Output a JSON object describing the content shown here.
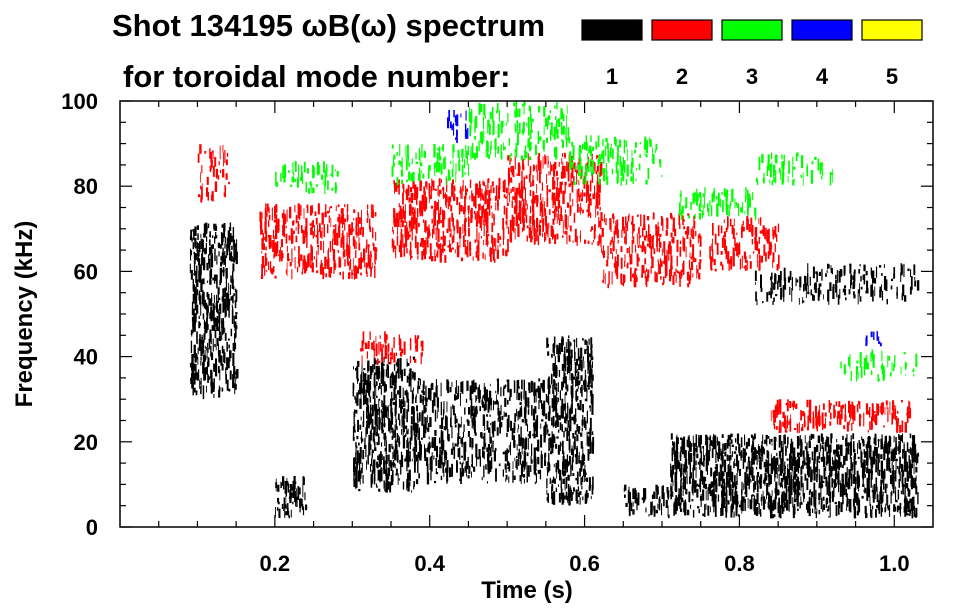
{
  "chart_data": {
    "type": "heatmap",
    "title_line1": "Shot 134195 ωB(ω) spectrum",
    "title_line2": "for toroidal mode number:",
    "xlabel": "Time (s)",
    "ylabel": "Frequency (kHz)",
    "xlim": [
      0.0,
      1.05
    ],
    "ylim": [
      0,
      100
    ],
    "x_ticks": [
      {
        "value": 0.2,
        "label": "0.2"
      },
      {
        "value": 0.4,
        "label": "0.4"
      },
      {
        "value": 0.6,
        "label": "0.6"
      },
      {
        "value": 0.8,
        "label": "0.8"
      },
      {
        "value": 1.0,
        "label": "1.0"
      }
    ],
    "y_ticks": [
      {
        "value": 0,
        "label": "0"
      },
      {
        "value": 20,
        "label": "20"
      },
      {
        "value": 40,
        "label": "40"
      },
      {
        "value": 60,
        "label": "60"
      },
      {
        "value": 80,
        "label": "80"
      },
      {
        "value": 100,
        "label": "100"
      }
    ],
    "legend": [
      {
        "mode": "1",
        "color": "#000000"
      },
      {
        "mode": "2",
        "color": "#ff0000"
      },
      {
        "mode": "3",
        "color": "#00ff00"
      },
      {
        "mode": "4",
        "color": "#0000ff"
      },
      {
        "mode": "5",
        "color": "#ffff00"
      }
    ],
    "regions": [
      {
        "mode": "1",
        "t": [
          0.09,
          0.15
        ],
        "f": [
          30,
          72
        ],
        "density": 0.75
      },
      {
        "mode": "1",
        "t": [
          0.2,
          0.24
        ],
        "f": [
          2,
          12
        ],
        "density": 0.7
      },
      {
        "mode": "1",
        "t": [
          0.3,
          0.38
        ],
        "f": [
          8,
          40
        ],
        "density": 0.8
      },
      {
        "mode": "1",
        "t": [
          0.38,
          0.55
        ],
        "f": [
          10,
          35
        ],
        "density": 0.55
      },
      {
        "mode": "1",
        "t": [
          0.55,
          0.61
        ],
        "f": [
          5,
          45
        ],
        "density": 0.75
      },
      {
        "mode": "1",
        "t": [
          0.65,
          0.71
        ],
        "f": [
          2,
          10
        ],
        "density": 0.5
      },
      {
        "mode": "1",
        "t": [
          0.71,
          1.03
        ],
        "f": [
          2,
          22
        ],
        "density": 0.85
      },
      {
        "mode": "1",
        "t": [
          0.82,
          1.03
        ],
        "f": [
          52,
          62
        ],
        "density": 0.35
      },
      {
        "mode": "2",
        "t": [
          0.1,
          0.14
        ],
        "f": [
          76,
          90
        ],
        "density": 0.35
      },
      {
        "mode": "2",
        "t": [
          0.18,
          0.33
        ],
        "f": [
          58,
          76
        ],
        "density": 0.55
      },
      {
        "mode": "2",
        "t": [
          0.35,
          0.5
        ],
        "f": [
          62,
          82
        ],
        "density": 0.6
      },
      {
        "mode": "2",
        "t": [
          0.5,
          0.62
        ],
        "f": [
          66,
          88
        ],
        "density": 0.6
      },
      {
        "mode": "2",
        "t": [
          0.62,
          0.75
        ],
        "f": [
          56,
          74
        ],
        "density": 0.5
      },
      {
        "mode": "2",
        "t": [
          0.76,
          0.85
        ],
        "f": [
          60,
          73
        ],
        "density": 0.4
      },
      {
        "mode": "2",
        "t": [
          0.84,
          1.02
        ],
        "f": [
          22,
          30
        ],
        "density": 0.5
      },
      {
        "mode": "2",
        "t": [
          0.31,
          0.39
        ],
        "f": [
          38,
          46
        ],
        "density": 0.4
      },
      {
        "mode": "3",
        "t": [
          0.2,
          0.28
        ],
        "f": [
          78,
          86
        ],
        "density": 0.35
      },
      {
        "mode": "3",
        "t": [
          0.35,
          0.45
        ],
        "f": [
          80,
          90
        ],
        "density": 0.35
      },
      {
        "mode": "3",
        "t": [
          0.45,
          0.58
        ],
        "f": [
          86,
          100
        ],
        "density": 0.35
      },
      {
        "mode": "3",
        "t": [
          0.58,
          0.7
        ],
        "f": [
          80,
          92
        ],
        "density": 0.35
      },
      {
        "mode": "3",
        "t": [
          0.72,
          0.82
        ],
        "f": [
          72,
          80
        ],
        "density": 0.4
      },
      {
        "mode": "3",
        "t": [
          0.82,
          0.92
        ],
        "f": [
          80,
          88
        ],
        "density": 0.3
      },
      {
        "mode": "3",
        "t": [
          0.93,
          1.03
        ],
        "f": [
          34,
          42
        ],
        "density": 0.25
      },
      {
        "mode": "4",
        "t": [
          0.42,
          0.45
        ],
        "f": [
          90,
          98
        ],
        "density": 0.3
      },
      {
        "mode": "4",
        "t": [
          0.96,
          0.99
        ],
        "f": [
          42,
          46
        ],
        "density": 0.3
      }
    ]
  }
}
